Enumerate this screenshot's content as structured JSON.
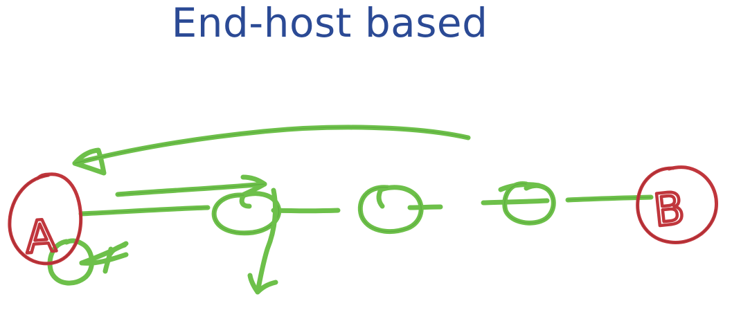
{
  "slide": {
    "title": "End-host based"
  },
  "annotation": {
    "ink_colors": {
      "path_and_routers": "#6dc04a",
      "endpoints": "#c0363c"
    },
    "endpoints": [
      {
        "id": "host-a",
        "label": "A"
      },
      {
        "id": "host-b",
        "label": "B"
      }
    ]
  }
}
